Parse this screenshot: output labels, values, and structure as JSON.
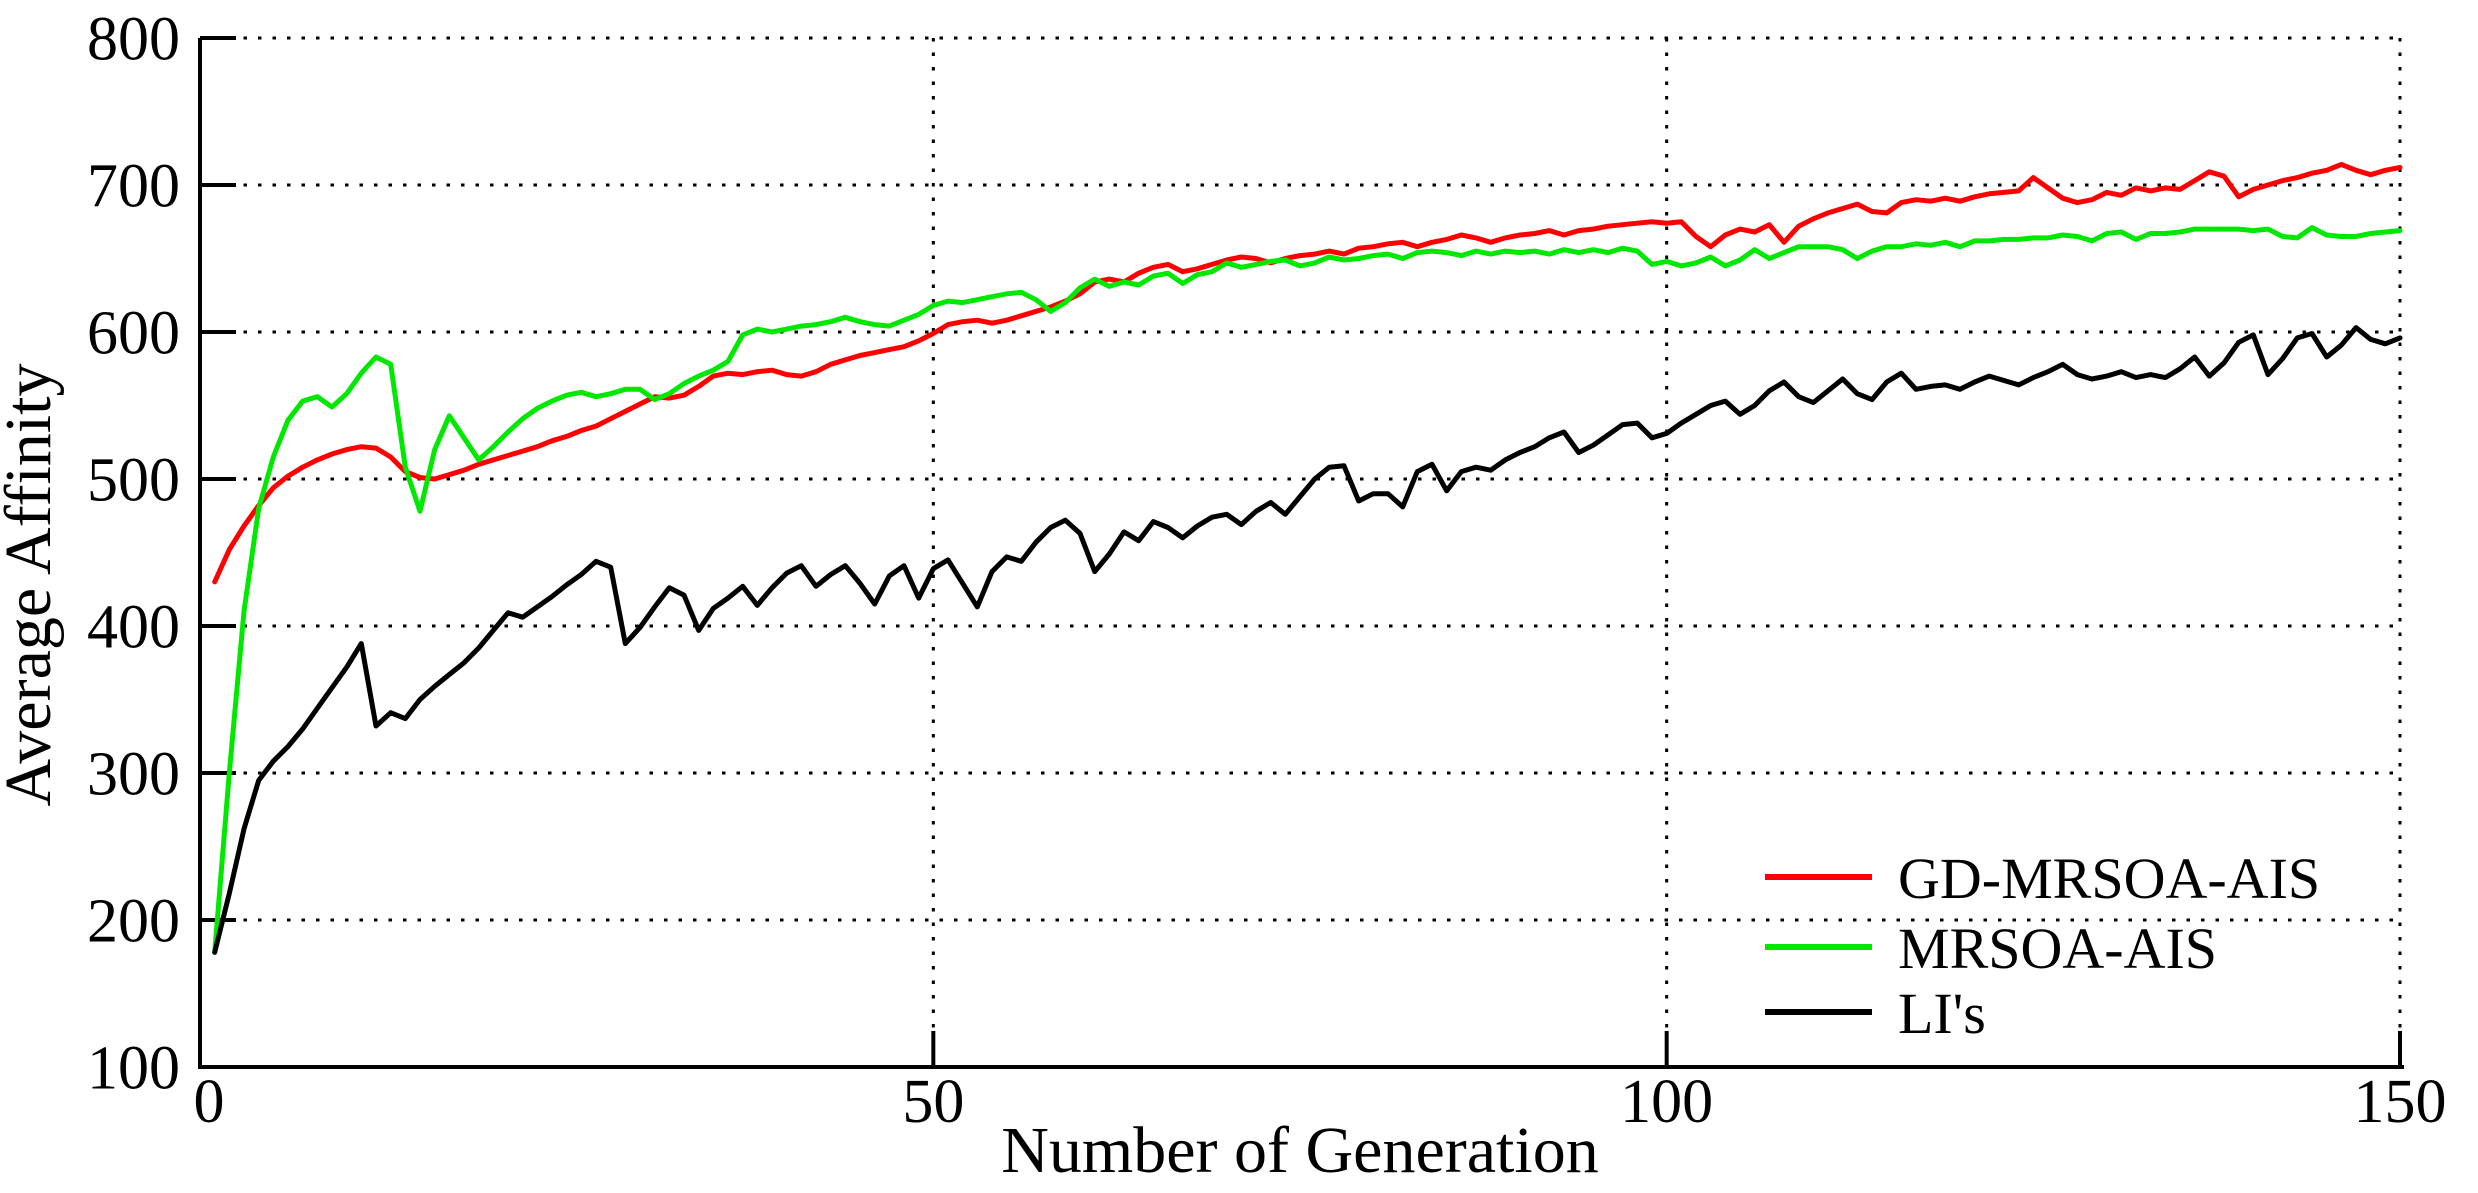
{
  "chart_data": {
    "type": "line",
    "title": "",
    "xlabel": "Number of Generation",
    "ylabel": "Average Affinity",
    "xlim": [
      0,
      150
    ],
    "ylim": [
      100,
      800
    ],
    "x_ticks": [
      0,
      50,
      100,
      150
    ],
    "y_ticks": [
      100,
      200,
      300,
      400,
      500,
      600,
      700,
      800
    ],
    "grid": "dotted",
    "legend_position": "bottom-right",
    "x_start": 1,
    "x_step": 1,
    "series": [
      {
        "name": "GD-MRSOA-AIS",
        "color": "#ff0000",
        "values": [
          430,
          452,
          468,
          482,
          494,
          502,
          508,
          513,
          517,
          520,
          522,
          521,
          515,
          505,
          501,
          500,
          503,
          506,
          510,
          513,
          516,
          519,
          522,
          526,
          529,
          533,
          536,
          541,
          546,
          551,
          556,
          555,
          557,
          563,
          570,
          572,
          571,
          573,
          574,
          571,
          570,
          573,
          578,
          581,
          584,
          586,
          588,
          590,
          594,
          599,
          605,
          607,
          608,
          606,
          608,
          611,
          614,
          617,
          621,
          626,
          634,
          636,
          634,
          640,
          644,
          646,
          641,
          643,
          646,
          649,
          651,
          650,
          647,
          650,
          652,
          653,
          655,
          653,
          657,
          658,
          660,
          661,
          658,
          661,
          663,
          666,
          664,
          661,
          664,
          666,
          667,
          669,
          666,
          669,
          670,
          672,
          673,
          674,
          675,
          674,
          675,
          665,
          658,
          666,
          670,
          668,
          673,
          661,
          672,
          677,
          681,
          684,
          687,
          682,
          681,
          688,
          690,
          689,
          691,
          689,
          692,
          694,
          695,
          696,
          705,
          698,
          691,
          688,
          690,
          695,
          693,
          698,
          696,
          698,
          697,
          703,
          709,
          706,
          692,
          697,
          700,
          703,
          705,
          708,
          710,
          714,
          710,
          707,
          710,
          712
        ]
      },
      {
        "name": "MRSOA-AIS",
        "color": "#00e800",
        "values": [
          178,
          300,
          410,
          480,
          515,
          540,
          553,
          556,
          549,
          558,
          572,
          583,
          578,
          508,
          478,
          520,
          543,
          528,
          513,
          522,
          532,
          541,
          548,
          553,
          557,
          559,
          556,
          558,
          561,
          561,
          554,
          558,
          565,
          570,
          574,
          580,
          598,
          602,
          600,
          602,
          604,
          605,
          607,
          610,
          607,
          605,
          604,
          608,
          612,
          618,
          621,
          620,
          622,
          624,
          626,
          627,
          622,
          614,
          620,
          630,
          636,
          631,
          634,
          632,
          638,
          640,
          633,
          639,
          641,
          647,
          644,
          646,
          648,
          649,
          645,
          647,
          651,
          649,
          650,
          652,
          653,
          650,
          654,
          655,
          654,
          652,
          655,
          653,
          655,
          654,
          655,
          653,
          656,
          654,
          656,
          654,
          657,
          655,
          646,
          648,
          645,
          647,
          651,
          645,
          649,
          656,
          650,
          654,
          658,
          658,
          658,
          656,
          650,
          655,
          658,
          658,
          660,
          659,
          661,
          658,
          662,
          662,
          663,
          663,
          664,
          664,
          666,
          665,
          662,
          667,
          668,
          663,
          667,
          667,
          668,
          670,
          670,
          670,
          670,
          669,
          670,
          665,
          664,
          671,
          666,
          665,
          665,
          667,
          668,
          669
        ]
      },
      {
        "name": "LI's",
        "color": "#000000",
        "values": [
          178,
          218,
          262,
          295,
          308,
          318,
          330,
          344,
          358,
          372,
          388,
          332,
          341,
          337,
          350,
          359,
          367,
          375,
          385,
          397,
          409,
          406,
          413,
          420,
          428,
          435,
          444,
          440,
          388,
          399,
          413,
          426,
          421,
          397,
          412,
          419,
          427,
          414,
          426,
          436,
          441,
          427,
          435,
          441,
          429,
          415,
          434,
          441,
          419,
          439,
          445,
          429,
          413,
          437,
          447,
          444,
          457,
          467,
          472,
          463,
          437,
          449,
          464,
          458,
          471,
          467,
          460,
          468,
          474,
          476,
          469,
          478,
          484,
          476,
          488,
          500,
          508,
          509,
          485,
          490,
          490,
          481,
          505,
          510,
          492,
          505,
          508,
          506,
          513,
          518,
          522,
          528,
          532,
          518,
          523,
          530,
          537,
          538,
          528,
          531,
          538,
          544,
          550,
          553,
          544,
          550,
          560,
          566,
          556,
          552,
          560,
          568,
          558,
          554,
          566,
          572,
          561,
          563,
          564,
          561,
          566,
          570,
          567,
          564,
          569,
          573,
          578,
          571,
          568,
          570,
          573,
          569,
          571,
          569,
          575,
          583,
          570,
          579,
          593,
          598,
          571,
          582,
          596,
          599,
          583,
          591,
          603,
          595,
          592,
          596
        ]
      }
    ]
  },
  "colors": {
    "background": "#ffffff",
    "axis": "#000000",
    "grid": "#000000"
  }
}
